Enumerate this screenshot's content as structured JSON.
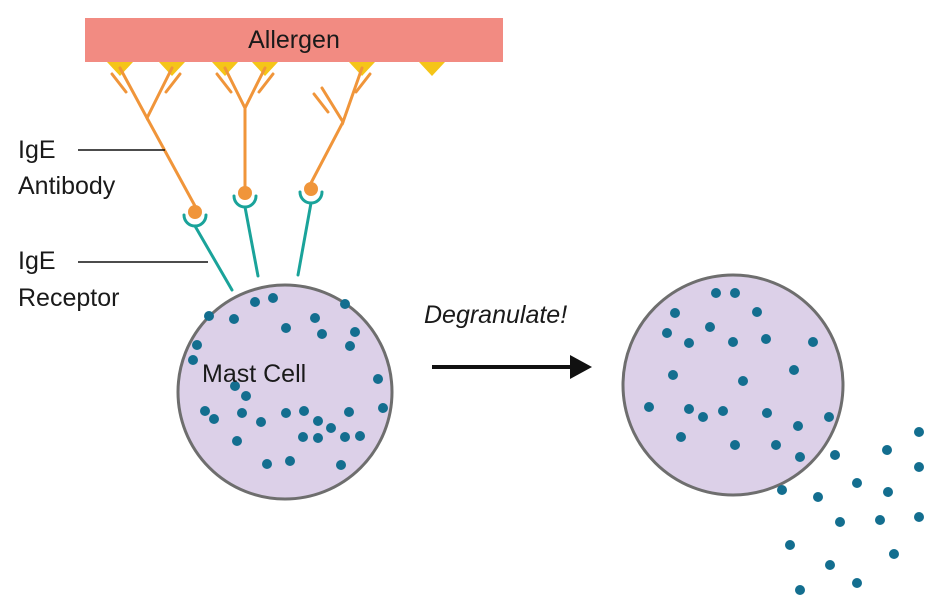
{
  "labels": {
    "allergen": "Allergen",
    "ige": "IgE",
    "antibody": "Antibody",
    "receptor": "Receptor",
    "mast_cell": "Mast Cell",
    "degranulate": "Degranulate!"
  },
  "colors": {
    "allergen_bar": "#f28b82",
    "allergen_site": "#f5c518",
    "antibody": "#f0953a",
    "receptor": "#1aa39a",
    "cell_fill": "#dcd0e8",
    "cell_stroke": "#6e6e6e",
    "granule": "#136e8f",
    "arrow": "#111111"
  }
}
